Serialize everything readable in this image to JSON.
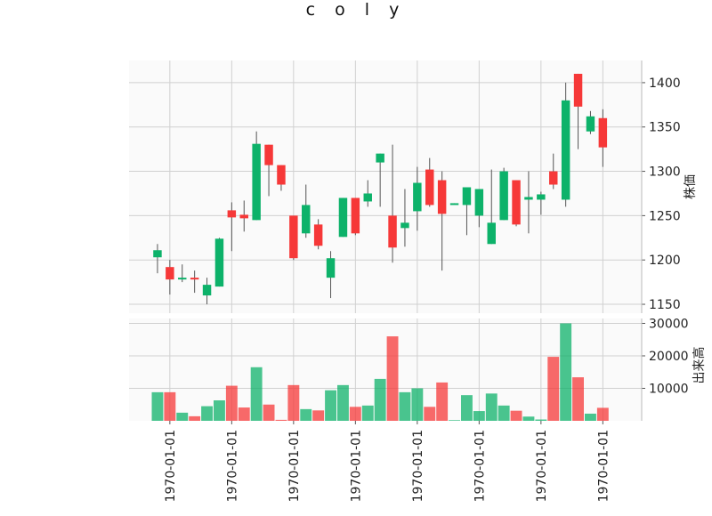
{
  "title": "c o l y",
  "chart_data": {
    "type": "candlestick",
    "title": "c o l y",
    "price_axis_label": "株価",
    "volume_axis_label": "出来高",
    "price_ticks": [
      1150,
      1200,
      1250,
      1300,
      1350,
      1400
    ],
    "volume_ticks": [
      10000,
      20000,
      30000
    ],
    "price_range": [
      1140,
      1425
    ],
    "volume_range": [
      0,
      31500
    ],
    "x_tick_labels": [
      "1970-01-01",
      "1970-01-01",
      "1970-01-01",
      "1970-01-01",
      "1970-01-01",
      "1970-01-01",
      "1970-01-01",
      "1970-01-01"
    ],
    "x_tick_positions": [
      1.5,
      6.5,
      11.5,
      16.5,
      21.5,
      26.5,
      31.5,
      36.5
    ],
    "up_color": "#0db26a",
    "down_color": "#f63838",
    "candles": [
      {
        "open": 1203,
        "close": 1211,
        "high": 1218,
        "low": 1185,
        "volume": 8800
      },
      {
        "open": 1192,
        "close": 1178,
        "high": 1200,
        "low": 1161,
        "volume": 8800
      },
      {
        "open": 1178,
        "close": 1180,
        "high": 1195,
        "low": 1175,
        "volume": 2500
      },
      {
        "open": 1180,
        "close": 1178,
        "high": 1188,
        "low": 1163,
        "volume": 1400
      },
      {
        "open": 1160,
        "close": 1172,
        "high": 1180,
        "low": 1150,
        "volume": 4500
      },
      {
        "open": 1170,
        "close": 1224,
        "high": 1225,
        "low": 1170,
        "volume": 6300
      },
      {
        "open": 1256,
        "close": 1248,
        "high": 1265,
        "low": 1210,
        "volume": 10800
      },
      {
        "open": 1251,
        "close": 1247,
        "high": 1267,
        "low": 1232,
        "volume": 4100
      },
      {
        "open": 1245,
        "close": 1331,
        "high": 1345,
        "low": 1245,
        "volume": 16500
      },
      {
        "open": 1330,
        "close": 1307,
        "high": 1330,
        "low": 1272,
        "volume": 5000
      },
      {
        "open": 1307,
        "close": 1285,
        "high": 1307,
        "low": 1278,
        "volume": 300
      },
      {
        "open": 1250,
        "close": 1202,
        "high": 1250,
        "low": 1200,
        "volume": 11000
      },
      {
        "open": 1230,
        "close": 1262,
        "high": 1285,
        "low": 1225,
        "volume": 3600
      },
      {
        "open": 1240,
        "close": 1216,
        "high": 1246,
        "low": 1212,
        "volume": 3200
      },
      {
        "open": 1180,
        "close": 1202,
        "high": 1210,
        "low": 1157,
        "volume": 9400
      },
      {
        "open": 1226,
        "close": 1270,
        "high": 1270,
        "low": 1226,
        "volume": 11000
      },
      {
        "open": 1270,
        "close": 1230,
        "high": 1270,
        "low": 1228,
        "volume": 4300
      },
      {
        "open": 1266,
        "close": 1275,
        "high": 1290,
        "low": 1260,
        "volume": 4700
      },
      {
        "open": 1310,
        "close": 1320,
        "high": 1320,
        "low": 1260,
        "volume": 12900
      },
      {
        "open": 1250,
        "close": 1214,
        "high": 1330,
        "low": 1197,
        "volume": 26000
      },
      {
        "open": 1236,
        "close": 1242,
        "high": 1280,
        "low": 1215,
        "volume": 8800
      },
      {
        "open": 1255,
        "close": 1287,
        "high": 1305,
        "low": 1233,
        "volume": 10000
      },
      {
        "open": 1302,
        "close": 1262,
        "high": 1315,
        "low": 1260,
        "volume": 4300
      },
      {
        "open": 1290,
        "close": 1252,
        "high": 1300,
        "low": 1188,
        "volume": 11800
      },
      {
        "open": 1263,
        "close": 1264,
        "high": 1264,
        "low": 1263,
        "volume": 200
      },
      {
        "open": 1262,
        "close": 1282,
        "high": 1282,
        "low": 1228,
        "volume": 7900
      },
      {
        "open": 1250,
        "close": 1280,
        "high": 1280,
        "low": 1237,
        "volume": 3000
      },
      {
        "open": 1218,
        "close": 1242,
        "high": 1302,
        "low": 1218,
        "volume": 8400
      },
      {
        "open": 1245,
        "close": 1300,
        "high": 1304,
        "low": 1245,
        "volume": 4700
      },
      {
        "open": 1290,
        "close": 1240,
        "high": 1290,
        "low": 1238,
        "volume": 3100
      },
      {
        "open": 1268,
        "close": 1271,
        "high": 1300,
        "low": 1230,
        "volume": 1300
      },
      {
        "open": 1268,
        "close": 1274,
        "high": 1277,
        "low": 1251,
        "volume": 400
      },
      {
        "open": 1300,
        "close": 1285,
        "high": 1320,
        "low": 1280,
        "volume": 19700
      },
      {
        "open": 1268,
        "close": 1380,
        "high": 1400,
        "low": 1260,
        "volume": 30000
      },
      {
        "open": 1410,
        "close": 1373,
        "high": 1410,
        "low": 1325,
        "volume": 13400
      },
      {
        "open": 1345,
        "close": 1362,
        "high": 1368,
        "low": 1342,
        "volume": 2200
      },
      {
        "open": 1360,
        "close": 1327,
        "high": 1370,
        "low": 1305,
        "volume": 4000
      }
    ]
  }
}
